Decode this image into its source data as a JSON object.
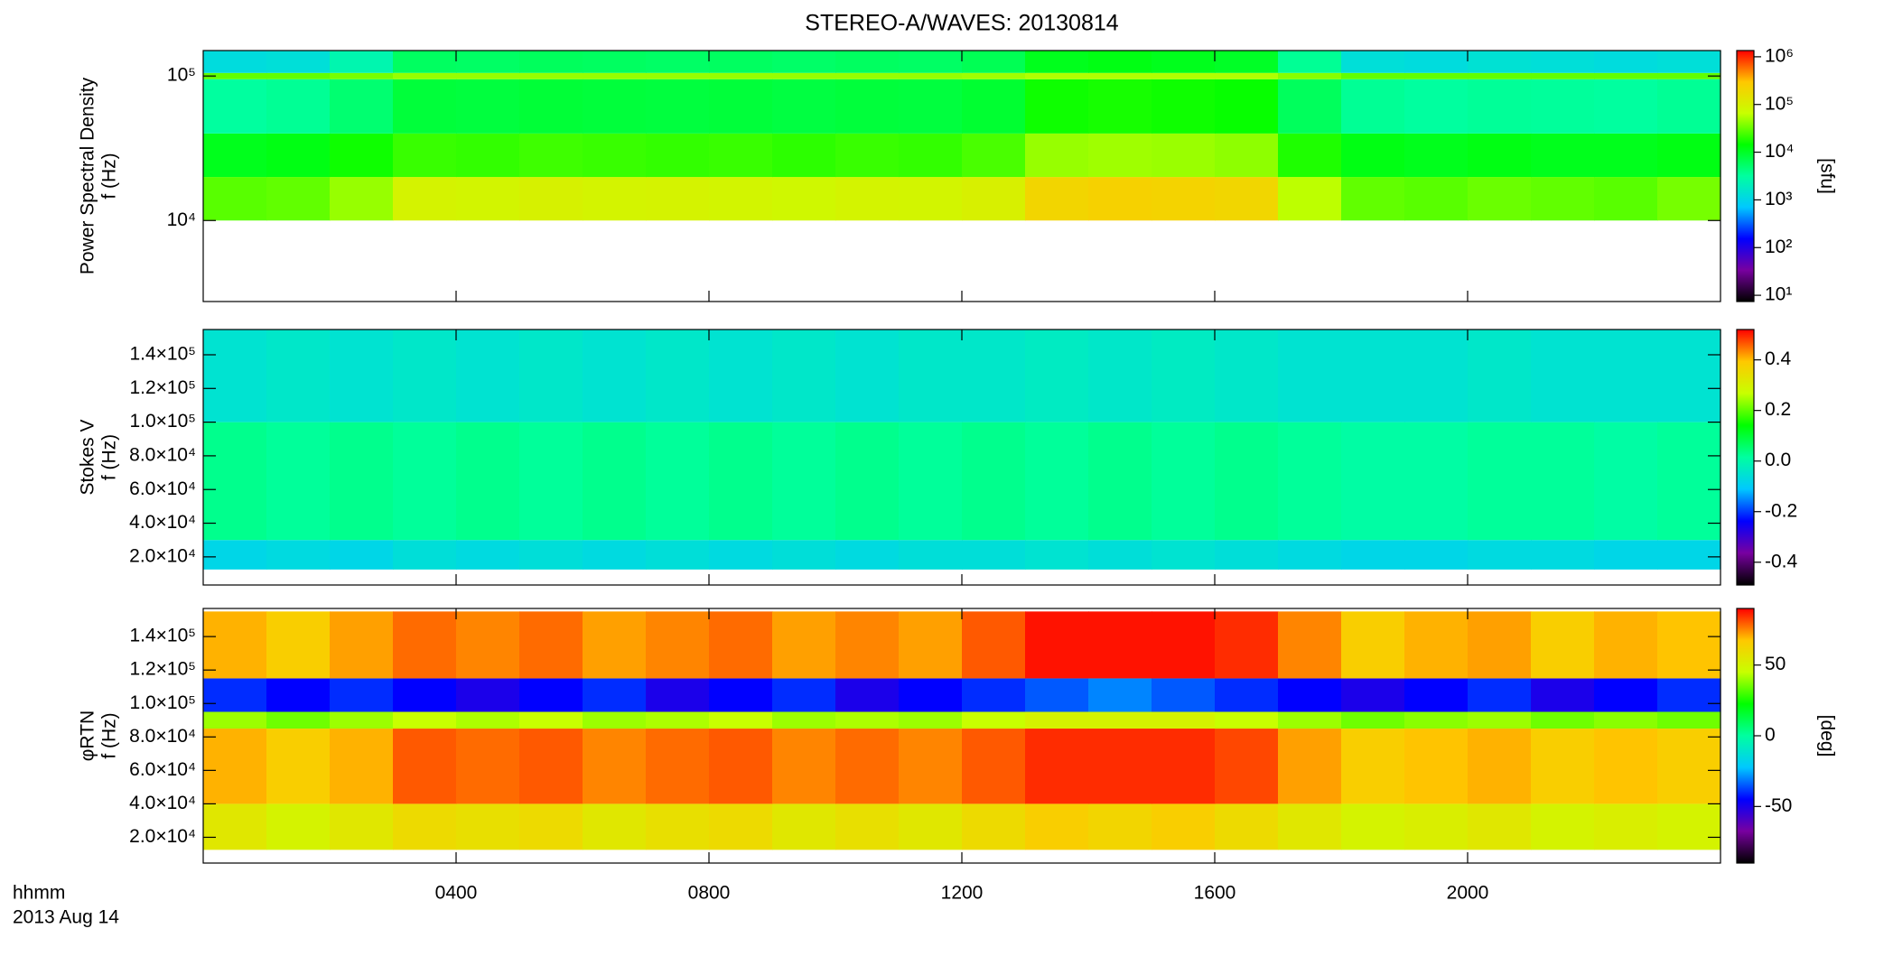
{
  "chart_data": [
    {
      "type": "heatmap",
      "title": "STEREO-A/WAVES: 20130814",
      "ylabel": [
        "Power Spectral Density",
        "f (Hz)"
      ],
      "xlim": [
        0,
        24
      ],
      "ylim": [
        2750,
        150000
      ],
      "ylog": true,
      "yticks": [
        {
          "value": 10000,
          "label": "10⁴"
        },
        {
          "value": 100000,
          "label": "10⁵"
        }
      ],
      "x_edges": [
        0,
        1,
        2,
        3,
        4,
        5,
        6,
        7,
        8,
        9,
        10,
        11,
        12,
        13,
        14,
        15,
        16,
        17,
        18,
        19,
        20,
        21,
        22,
        23,
        24
      ],
      "y_edges": [
        10000,
        20000,
        40000,
        95000,
        105000,
        150000
      ],
      "z": [
        [
          28000,
          30000,
          45000,
          90000,
          85000,
          95000,
          88000,
          92000,
          85000,
          80000,
          88000,
          85000,
          100000,
          210000,
          230000,
          220000,
          200000,
          60000,
          30000,
          28000,
          32000,
          30000,
          28000,
          35000
        ],
        [
          11000,
          12000,
          16000,
          22000,
          21000,
          23000,
          22000,
          21000,
          22000,
          20000,
          22000,
          21000,
          25000,
          45000,
          48000,
          46000,
          42000,
          18000,
          12000,
          11000,
          12000,
          11000,
          11000,
          12000
        ],
        [
          3200,
          3500,
          5000,
          8300,
          8000,
          8500,
          8200,
          8000,
          8300,
          7800,
          8200,
          8000,
          9000,
          16000,
          17000,
          16000,
          15000,
          6000,
          3500,
          3200,
          3400,
          3300,
          3200,
          3500
        ],
        [
          30000,
          30000,
          35000,
          45000,
          45000,
          45000,
          45000,
          45000,
          45000,
          45000,
          45000,
          45000,
          48000,
          55000,
          55000,
          55000,
          55000,
          40000,
          30000,
          30000,
          30000,
          30000,
          30000,
          30000
        ],
        [
          1200,
          1300,
          2500,
          5800,
          5600,
          6000,
          5800,
          5500,
          5800,
          5400,
          5800,
          5600,
          6500,
          11000,
          12000,
          11000,
          10000,
          3500,
          1300,
          1200,
          1400,
          1300,
          1200,
          1300
        ]
      ],
      "clim": [
        7.4,
        1350000
      ],
      "clog": true,
      "cticks": [
        {
          "value": 10,
          "label": "10¹"
        },
        {
          "value": 100,
          "label": "10²"
        },
        {
          "value": 1000,
          "label": "10³"
        },
        {
          "value": 10000,
          "label": "10⁴"
        },
        {
          "value": 100000,
          "label": "10⁵"
        },
        {
          "value": 1000000,
          "label": "10⁶"
        }
      ],
      "clabel": "[sfu]",
      "colorscale": [
        "#000000",
        "#7800a0",
        "#0000ff",
        "#00c8ff",
        "#00ffa0",
        "#00ff00",
        "#c8ff00",
        "#ffc800",
        "#ff0000"
      ]
    },
    {
      "type": "heatmap",
      "ylabel": [
        "Stokes V",
        "f (Hz)"
      ],
      "xlim": [
        0,
        24
      ],
      "ylim": [
        3300,
        155000
      ],
      "ylog": false,
      "yticks": [
        {
          "value": 20000,
          "label": "2.0×10⁴"
        },
        {
          "value": 40000,
          "label": "4.0×10⁴"
        },
        {
          "value": 60000,
          "label": "6.0×10⁴"
        },
        {
          "value": 80000,
          "label": "8.0×10⁴"
        },
        {
          "value": 100000,
          "label": "1.0×10⁵"
        },
        {
          "value": 120000,
          "label": "1.2×10⁵"
        },
        {
          "value": 140000,
          "label": "1.4×10⁵"
        }
      ],
      "x_edges": [
        0,
        1,
        2,
        3,
        4,
        5,
        6,
        7,
        8,
        9,
        10,
        11,
        12,
        13,
        14,
        15,
        16,
        17,
        18,
        19,
        20,
        21,
        22,
        23,
        24
      ],
      "y_edges": [
        12500,
        30000,
        100000,
        155000
      ],
      "z": [
        [
          -0.08,
          -0.07,
          -0.08,
          -0.06,
          -0.07,
          -0.06,
          -0.07,
          -0.06,
          -0.07,
          -0.06,
          -0.07,
          -0.06,
          -0.06,
          -0.05,
          -0.06,
          -0.05,
          -0.06,
          -0.07,
          -0.08,
          -0.08,
          -0.07,
          -0.07,
          -0.08,
          -0.08
        ],
        [
          0.03,
          0.02,
          0.03,
          0.02,
          0.03,
          0.02,
          0.03,
          0.02,
          0.03,
          0.02,
          0.03,
          0.02,
          0.03,
          0.02,
          0.03,
          0.02,
          0.03,
          0.02,
          0.01,
          0.01,
          0.02,
          0.02,
          0.01,
          0.02
        ],
        [
          -0.05,
          -0.04,
          -0.05,
          -0.04,
          -0.05,
          -0.04,
          -0.05,
          -0.04,
          -0.05,
          -0.04,
          -0.05,
          -0.04,
          -0.04,
          -0.03,
          -0.04,
          -0.03,
          -0.04,
          -0.05,
          -0.05,
          -0.05,
          -0.04,
          -0.05,
          -0.05,
          -0.05
        ]
      ],
      "clim": [
        -0.49,
        0.52
      ],
      "clog": false,
      "cticks": [
        -0.4,
        -0.2,
        {
          "value": 0,
          "label": "0.0"
        },
        0.2,
        0.4
      ],
      "colorscale": [
        "#000000",
        "#7800a0",
        "#0000ff",
        "#00c8ff",
        "#00ffa0",
        "#00ff00",
        "#c8ff00",
        "#ffc800",
        "#ff0000"
      ]
    },
    {
      "type": "heatmap",
      "ylabel": [
        "φRTN",
        "f (Hz)"
      ],
      "xlim": [
        0,
        24
      ],
      "ylim": [
        4600,
        156800
      ],
      "ylog": false,
      "yticks": [
        {
          "value": 20000,
          "label": "2.0×10⁴"
        },
        {
          "value": 40000,
          "label": "4.0×10⁴"
        },
        {
          "value": 60000,
          "label": "6.0×10⁴"
        },
        {
          "value": 80000,
          "label": "8.0×10⁴"
        },
        {
          "value": 100000,
          "label": "1.0×10⁵"
        },
        {
          "value": 120000,
          "label": "1.2×10⁵"
        },
        {
          "value": 140000,
          "label": "1.4×10⁵"
        }
      ],
      "xticks": [
        {
          "value": 4,
          "label": "0400"
        },
        {
          "value": 8,
          "label": "0800"
        },
        {
          "value": 12,
          "label": "1200"
        },
        {
          "value": 16,
          "label": "1600"
        },
        {
          "value": 20,
          "label": "2000"
        }
      ],
      "xlabel": "hhmm",
      "date_label": "2013 Aug 14",
      "x_edges": [
        0,
        1,
        2,
        3,
        4,
        5,
        6,
        7,
        8,
        9,
        10,
        11,
        12,
        13,
        14,
        15,
        16,
        17,
        18,
        19,
        20,
        21,
        22,
        23,
        24
      ],
      "y_edges": [
        12500,
        40000,
        85000,
        95000,
        115000,
        155000
      ],
      "z": [
        [
          55,
          50,
          55,
          60,
          58,
          60,
          55,
          58,
          60,
          55,
          58,
          55,
          60,
          65,
          62,
          65,
          60,
          55,
          50,
          52,
          55,
          50,
          52,
          50
        ],
        [
          70,
          65,
          70,
          80,
          78,
          80,
          75,
          78,
          80,
          75,
          78,
          75,
          80,
          85,
          85,
          85,
          82,
          72,
          65,
          68,
          70,
          65,
          68,
          65
        ],
        [
          40,
          35,
          40,
          45,
          42,
          45,
          40,
          42,
          45,
          40,
          42,
          40,
          45,
          50,
          50,
          50,
          45,
          40,
          35,
          38,
          40,
          35,
          38,
          35
        ],
        [
          -40,
          -45,
          -40,
          -45,
          -50,
          -45,
          -40,
          -50,
          -45,
          -40,
          -50,
          -45,
          -40,
          -35,
          -30,
          -35,
          -40,
          -45,
          -50,
          -45,
          -40,
          -50,
          -45,
          -40
        ],
        [
          70,
          65,
          72,
          78,
          75,
          78,
          72,
          75,
          78,
          72,
          75,
          72,
          80,
          88,
          88,
          88,
          85,
          75,
          65,
          70,
          72,
          65,
          70,
          68
        ]
      ],
      "clim": [
        -90,
        90
      ],
      "clog": false,
      "cticks": [
        -50,
        0,
        50
      ],
      "clabel": "[deg]",
      "colorscale": [
        "#000000",
        "#7800a0",
        "#0000ff",
        "#00c8ff",
        "#00ffa0",
        "#00ff00",
        "#c8ff00",
        "#ffc800",
        "#ff0000"
      ]
    }
  ]
}
